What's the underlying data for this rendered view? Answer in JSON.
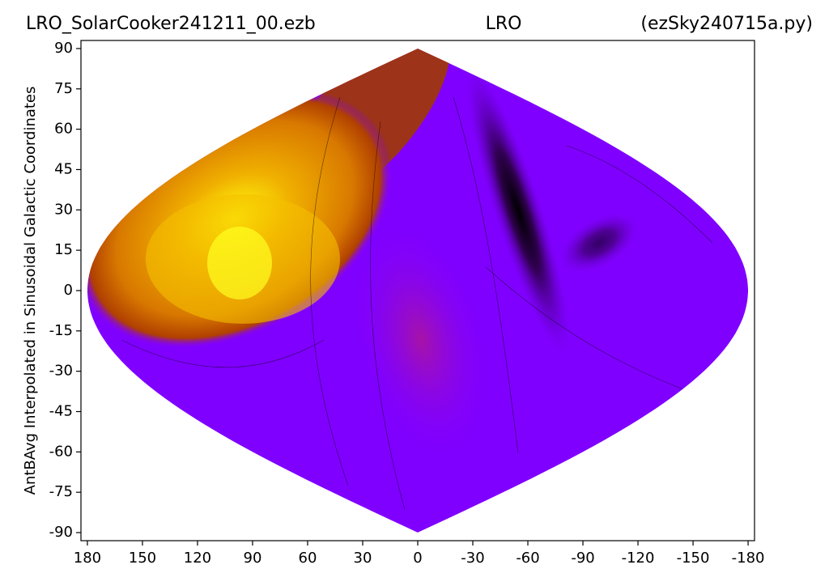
{
  "chart_data": {
    "type": "sky-map",
    "title": "LRO_SolarCooker241211_00.ezb",
    "subtitle": "LRO",
    "annotation": "(ezSky240715a.py)",
    "y_label": "AntBAvg Interpolated in Sinusoidal Galactic Coordinates",
    "xlim": [
      183.5,
      -183.5
    ],
    "xticks": [
      180,
      150,
      120,
      90,
      60,
      30,
      0,
      -30,
      -60,
      -90,
      -120,
      -150,
      -180
    ],
    "ylim": [
      -93,
      93
    ],
    "yticks": [
      -90,
      -75,
      -60,
      -45,
      -30,
      -15,
      0,
      15,
      30,
      45,
      60,
      75,
      90
    ],
    "color": "#8000ff"
  }
}
